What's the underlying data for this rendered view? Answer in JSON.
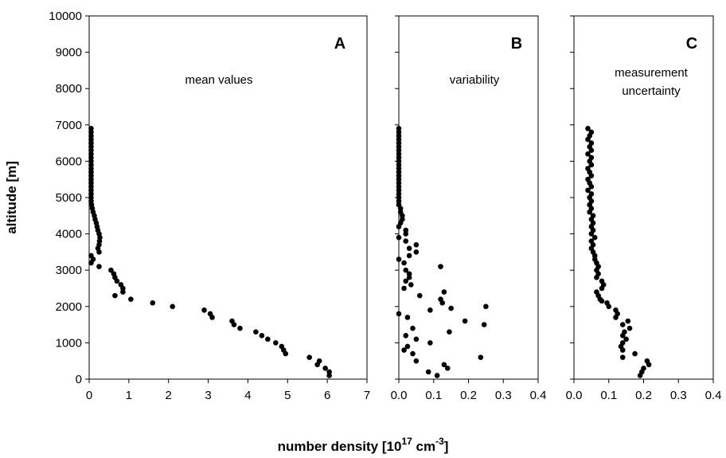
{
  "figure": {
    "ylabel": "altitude [m]",
    "xlabel": {
      "main": "number density [10",
      "exp": "17",
      "unit": " cm",
      "unit_exp": "-3",
      "close": "]"
    },
    "yticks": [
      "0",
      "1000",
      "2000",
      "3000",
      "4000",
      "5000",
      "6000",
      "7000",
      "8000",
      "9000",
      "10000"
    ]
  },
  "chart_data": [
    {
      "type": "scatter",
      "panel": "A",
      "annotation": [
        "mean values"
      ],
      "xlim": [
        0,
        7
      ],
      "ylim": [
        0,
        10000
      ],
      "xticks": [
        "0",
        "1",
        "2",
        "3",
        "4",
        "5",
        "6",
        "7"
      ],
      "points": [
        [
          0.05,
          6900
        ],
        [
          0.05,
          6800
        ],
        [
          0.05,
          6700
        ],
        [
          0.05,
          6600
        ],
        [
          0.05,
          6500
        ],
        [
          0.05,
          6400
        ],
        [
          0.05,
          6300
        ],
        [
          0.05,
          6200
        ],
        [
          0.05,
          6100
        ],
        [
          0.05,
          6000
        ],
        [
          0.05,
          5900
        ],
        [
          0.05,
          5800
        ],
        [
          0.05,
          5700
        ],
        [
          0.05,
          5600
        ],
        [
          0.05,
          5500
        ],
        [
          0.05,
          5400
        ],
        [
          0.05,
          5300
        ],
        [
          0.05,
          5200
        ],
        [
          0.05,
          5100
        ],
        [
          0.05,
          5000
        ],
        [
          0.05,
          4900
        ],
        [
          0.06,
          4800
        ],
        [
          0.08,
          4700
        ],
        [
          0.1,
          4600
        ],
        [
          0.13,
          4500
        ],
        [
          0.15,
          4400
        ],
        [
          0.18,
          4300
        ],
        [
          0.2,
          4200
        ],
        [
          0.22,
          4100
        ],
        [
          0.25,
          4000
        ],
        [
          0.27,
          3900
        ],
        [
          0.26,
          3800
        ],
        [
          0.25,
          3700
        ],
        [
          0.22,
          3600
        ],
        [
          0.25,
          3500
        ],
        [
          0.05,
          3400
        ],
        [
          0.1,
          3300
        ],
        [
          0.05,
          3200
        ],
        [
          0.25,
          3100
        ],
        [
          0.55,
          3000
        ],
        [
          0.62,
          2900
        ],
        [
          0.65,
          2800
        ],
        [
          0.7,
          2700
        ],
        [
          0.8,
          2600
        ],
        [
          0.85,
          2500
        ],
        [
          0.85,
          2400
        ],
        [
          0.65,
          2300
        ],
        [
          1.05,
          2200
        ],
        [
          1.6,
          2100
        ],
        [
          2.1,
          2000
        ],
        [
          2.9,
          1900
        ],
        [
          3.05,
          1800
        ],
        [
          3.1,
          1700
        ],
        [
          3.6,
          1600
        ],
        [
          3.65,
          1500
        ],
        [
          3.8,
          1400
        ],
        [
          4.2,
          1300
        ],
        [
          4.35,
          1200
        ],
        [
          4.5,
          1100
        ],
        [
          4.7,
          1000
        ],
        [
          4.85,
          900
        ],
        [
          4.9,
          800
        ],
        [
          4.95,
          700
        ],
        [
          5.55,
          600
        ],
        [
          5.8,
          500
        ],
        [
          5.75,
          400
        ],
        [
          5.95,
          300
        ],
        [
          6.05,
          200
        ],
        [
          6.05,
          100
        ]
      ]
    },
    {
      "type": "scatter",
      "panel": "B",
      "annotation": [
        "variability"
      ],
      "xlim": [
        0,
        0.4
      ],
      "ylim": [
        0,
        10000
      ],
      "xticks": [
        "0.0",
        "0.1",
        "0.2",
        "0.3",
        "0.4"
      ],
      "points": [
        [
          0.0,
          6900
        ],
        [
          0.0,
          6800
        ],
        [
          0.0,
          6700
        ],
        [
          0.0,
          6600
        ],
        [
          0.0,
          6500
        ],
        [
          0.0,
          6400
        ],
        [
          0.0,
          6300
        ],
        [
          0.0,
          6200
        ],
        [
          0.0,
          6100
        ],
        [
          0.0,
          6000
        ],
        [
          0.0,
          5900
        ],
        [
          0.0,
          5800
        ],
        [
          0.0,
          5700
        ],
        [
          0.0,
          5600
        ],
        [
          0.0,
          5500
        ],
        [
          0.0,
          5400
        ],
        [
          0.0,
          5300
        ],
        [
          0.0,
          5200
        ],
        [
          0.0,
          5100
        ],
        [
          0.0,
          5000
        ],
        [
          0.0,
          4900
        ],
        [
          0.0,
          4800
        ],
        [
          0.005,
          4700
        ],
        [
          0.005,
          4600
        ],
        [
          0.01,
          4500
        ],
        [
          0.01,
          4400
        ],
        [
          0.005,
          4300
        ],
        [
          0.0,
          4200
        ],
        [
          0.02,
          4100
        ],
        [
          0.02,
          4000
        ],
        [
          0.0,
          3900
        ],
        [
          0.02,
          3800
        ],
        [
          0.05,
          3700
        ],
        [
          0.03,
          3600
        ],
        [
          0.05,
          3500
        ],
        [
          0.03,
          3400
        ],
        [
          0.0,
          3300
        ],
        [
          0.015,
          3200
        ],
        [
          0.12,
          3100
        ],
        [
          0.02,
          3000
        ],
        [
          0.03,
          2900
        ],
        [
          0.03,
          2800
        ],
        [
          0.02,
          2700
        ],
        [
          0.035,
          2600
        ],
        [
          0.015,
          2500
        ],
        [
          0.13,
          2400
        ],
        [
          0.06,
          2300
        ],
        [
          0.12,
          2200
        ],
        [
          0.125,
          2100
        ],
        [
          0.25,
          2000
        ],
        [
          0.15,
          1950
        ],
        [
          0.09,
          1900
        ],
        [
          0.0,
          1800
        ],
        [
          0.025,
          1700
        ],
        [
          0.19,
          1600
        ],
        [
          0.245,
          1500
        ],
        [
          0.04,
          1400
        ],
        [
          0.145,
          1300
        ],
        [
          0.02,
          1200
        ],
        [
          0.05,
          1100
        ],
        [
          0.09,
          1000
        ],
        [
          0.025,
          900
        ],
        [
          0.015,
          800
        ],
        [
          0.04,
          700
        ],
        [
          0.235,
          600
        ],
        [
          0.05,
          500
        ],
        [
          0.13,
          400
        ],
        [
          0.14,
          300
        ],
        [
          0.085,
          200
        ],
        [
          0.11,
          100
        ]
      ]
    },
    {
      "type": "scatter",
      "panel": "C",
      "annotation": [
        "measurement",
        "uncertainty"
      ],
      "xlim": [
        0,
        0.4
      ],
      "ylim": [
        0,
        10000
      ],
      "xticks": [
        "0.0",
        "0.1",
        "0.2",
        "0.3",
        "0.4"
      ],
      "points": [
        [
          0.04,
          6900
        ],
        [
          0.05,
          6800
        ],
        [
          0.045,
          6700
        ],
        [
          0.04,
          6600
        ],
        [
          0.05,
          6500
        ],
        [
          0.045,
          6400
        ],
        [
          0.05,
          6300
        ],
        [
          0.04,
          6200
        ],
        [
          0.05,
          6100
        ],
        [
          0.045,
          6000
        ],
        [
          0.05,
          5900
        ],
        [
          0.04,
          5800
        ],
        [
          0.045,
          5700
        ],
        [
          0.05,
          5600
        ],
        [
          0.04,
          5500
        ],
        [
          0.045,
          5400
        ],
        [
          0.05,
          5300
        ],
        [
          0.04,
          5200
        ],
        [
          0.05,
          5100
        ],
        [
          0.045,
          5000
        ],
        [
          0.05,
          4900
        ],
        [
          0.045,
          4800
        ],
        [
          0.05,
          4700
        ],
        [
          0.045,
          4600
        ],
        [
          0.055,
          4500
        ],
        [
          0.05,
          4400
        ],
        [
          0.055,
          4300
        ],
        [
          0.05,
          4200
        ],
        [
          0.055,
          4100
        ],
        [
          0.05,
          4000
        ],
        [
          0.06,
          3900
        ],
        [
          0.05,
          3800
        ],
        [
          0.055,
          3700
        ],
        [
          0.05,
          3600
        ],
        [
          0.055,
          3500
        ],
        [
          0.06,
          3400
        ],
        [
          0.06,
          3300
        ],
        [
          0.065,
          3200
        ],
        [
          0.07,
          3100
        ],
        [
          0.065,
          3000
        ],
        [
          0.07,
          2900
        ],
        [
          0.065,
          2800
        ],
        [
          0.08,
          2700
        ],
        [
          0.085,
          2600
        ],
        [
          0.08,
          2500
        ],
        [
          0.065,
          2400
        ],
        [
          0.07,
          2300
        ],
        [
          0.075,
          2200
        ],
        [
          0.08,
          2150
        ],
        [
          0.095,
          2100
        ],
        [
          0.1,
          2000
        ],
        [
          0.12,
          1900
        ],
        [
          0.125,
          1800
        ],
        [
          0.12,
          1700
        ],
        [
          0.155,
          1600
        ],
        [
          0.14,
          1500
        ],
        [
          0.16,
          1400
        ],
        [
          0.145,
          1300
        ],
        [
          0.14,
          1200
        ],
        [
          0.15,
          1100
        ],
        [
          0.14,
          1000
        ],
        [
          0.135,
          900
        ],
        [
          0.14,
          800
        ],
        [
          0.175,
          700
        ],
        [
          0.14,
          600
        ],
        [
          0.21,
          500
        ],
        [
          0.215,
          400
        ],
        [
          0.2,
          300
        ],
        [
          0.195,
          200
        ],
        [
          0.19,
          100
        ]
      ]
    }
  ]
}
